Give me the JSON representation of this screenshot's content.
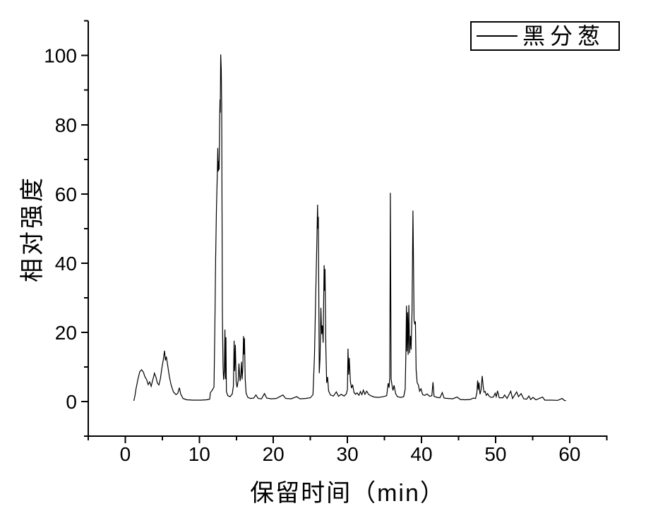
{
  "figure": {
    "x_axis_title": "保留时间（min）",
    "y_axis_title": "相对强度",
    "legend_label": "黑分葱",
    "line_color": "#000000",
    "background": "#ffffff"
  },
  "chart_data": {
    "type": "line",
    "title": "",
    "xlabel": "保留时间（min）",
    "ylabel": "相对强度",
    "legend_entries": [
      "黑分葱"
    ],
    "legend_position": "top-right",
    "grid": false,
    "xlim": [
      -5,
      65
    ],
    "ylim": [
      -10,
      110
    ],
    "xticks_major": [
      0,
      10,
      20,
      30,
      40,
      50,
      60
    ],
    "xticks_minor": [
      -5,
      5,
      15,
      25,
      35,
      45,
      55,
      65
    ],
    "yticks_major": [
      0,
      20,
      40,
      60,
      80,
      100
    ],
    "yticks_minor": [
      -10,
      10,
      30,
      50,
      70,
      90,
      110
    ],
    "series": [
      {
        "name": "黑分葱",
        "color": "#000000",
        "points": [
          [
            1.15,
            0.2
          ],
          [
            1.3,
            1.5
          ],
          [
            1.45,
            3.6
          ],
          [
            1.7,
            6.3
          ],
          [
            1.95,
            8.6
          ],
          [
            2.2,
            9.2
          ],
          [
            2.45,
            8.5
          ],
          [
            2.65,
            7.2
          ],
          [
            2.9,
            6.3
          ],
          [
            3.1,
            4.9
          ],
          [
            3.3,
            5.7
          ],
          [
            3.5,
            4.4
          ],
          [
            3.7,
            6.1
          ],
          [
            3.95,
            8.2
          ],
          [
            4.15,
            7.0
          ],
          [
            4.35,
            5.3
          ],
          [
            4.55,
            4.8
          ],
          [
            4.75,
            6.6
          ],
          [
            4.95,
            9.7
          ],
          [
            5.15,
            12.2
          ],
          [
            5.3,
            14.7
          ],
          [
            5.42,
            11.9
          ],
          [
            5.55,
            13.0
          ],
          [
            5.75,
            10.2
          ],
          [
            5.95,
            7.3
          ],
          [
            6.2,
            4.8
          ],
          [
            6.5,
            2.8
          ],
          [
            6.85,
            2.0
          ],
          [
            7.1,
            2.4
          ],
          [
            7.3,
            4.0
          ],
          [
            7.5,
            2.1
          ],
          [
            7.8,
            0.9
          ],
          [
            8.3,
            0.5
          ],
          [
            9.2,
            0.4
          ],
          [
            10.2,
            0.4
          ],
          [
            11.0,
            0.5
          ],
          [
            11.4,
            0.7
          ],
          [
            11.5,
            2.6
          ],
          [
            11.75,
            3.3
          ],
          [
            11.98,
            4.2
          ],
          [
            12.1,
            21
          ],
          [
            12.2,
            41
          ],
          [
            12.32,
            56
          ],
          [
            12.42,
            65
          ],
          [
            12.5,
            73.3
          ],
          [
            12.56,
            66.5
          ],
          [
            12.62,
            69.5
          ],
          [
            12.68,
            67
          ],
          [
            12.74,
            80
          ],
          [
            12.79,
            87.3
          ],
          [
            12.83,
            83.5
          ],
          [
            12.89,
            100.3
          ],
          [
            12.96,
            96
          ],
          [
            13.02,
            85
          ],
          [
            13.07,
            55
          ],
          [
            13.12,
            25
          ],
          [
            13.2,
            10.5
          ],
          [
            13.28,
            6.3
          ],
          [
            13.38,
            9
          ],
          [
            13.46,
            20.8
          ],
          [
            13.53,
            6.5
          ],
          [
            13.59,
            18.6
          ],
          [
            13.66,
            2.9
          ],
          [
            13.85,
            1.7
          ],
          [
            14.15,
            1.4
          ],
          [
            14.45,
            2.2
          ],
          [
            14.6,
            4.5
          ],
          [
            14.7,
            17.6
          ],
          [
            14.78,
            8.8
          ],
          [
            14.87,
            16.4
          ],
          [
            14.98,
            5.8
          ],
          [
            15.1,
            4.1
          ],
          [
            15.25,
            6.2
          ],
          [
            15.35,
            11.0
          ],
          [
            15.5,
            5.9
          ],
          [
            15.62,
            8.2
          ],
          [
            15.7,
            11.5
          ],
          [
            15.78,
            6.4
          ],
          [
            15.88,
            10
          ],
          [
            15.97,
            18.9
          ],
          [
            16.04,
            13.6
          ],
          [
            16.1,
            18.3
          ],
          [
            16.2,
            6.5
          ],
          [
            16.32,
            2.4
          ],
          [
            16.55,
            1.2
          ],
          [
            16.9,
            0.9
          ],
          [
            17.35,
            1.0
          ],
          [
            17.65,
            1.9
          ],
          [
            17.95,
            0.9
          ],
          [
            18.4,
            0.8
          ],
          [
            18.8,
            2.3
          ],
          [
            19.1,
            1.0
          ],
          [
            19.7,
            0.8
          ],
          [
            20.4,
            0.9
          ],
          [
            21.3,
            1.9
          ],
          [
            21.65,
            0.9
          ],
          [
            22.4,
            0.8
          ],
          [
            23.15,
            1.4
          ],
          [
            23.6,
            0.8
          ],
          [
            24.35,
            0.9
          ],
          [
            25.0,
            1.1
          ],
          [
            25.35,
            2.0
          ],
          [
            25.55,
            13
          ],
          [
            25.72,
            31
          ],
          [
            25.88,
            47
          ],
          [
            25.97,
            56.9
          ],
          [
            26.02,
            50
          ],
          [
            26.07,
            53.4
          ],
          [
            26.13,
            33
          ],
          [
            26.2,
            8.2
          ],
          [
            26.3,
            12.5
          ],
          [
            26.42,
            27.1
          ],
          [
            26.52,
            19.5
          ],
          [
            26.62,
            22
          ],
          [
            26.72,
            17
          ],
          [
            26.85,
            39.4
          ],
          [
            26.92,
            32
          ],
          [
            26.98,
            38.3
          ],
          [
            27.08,
            16
          ],
          [
            27.2,
            5.4
          ],
          [
            27.32,
            7.1
          ],
          [
            27.45,
            3.1
          ],
          [
            27.7,
            1.9
          ],
          [
            28.1,
            1.6
          ],
          [
            28.5,
            2.8
          ],
          [
            28.8,
            1.5
          ],
          [
            29.15,
            2.1
          ],
          [
            29.55,
            1.6
          ],
          [
            29.85,
            2.2
          ],
          [
            30.0,
            3.5
          ],
          [
            30.08,
            15.3
          ],
          [
            30.16,
            7.8
          ],
          [
            30.25,
            12.6
          ],
          [
            30.4,
            5.8
          ],
          [
            30.55,
            3.9
          ],
          [
            30.7,
            4.9
          ],
          [
            30.9,
            2.6
          ],
          [
            31.1,
            2.1
          ],
          [
            31.3,
            2.5
          ],
          [
            31.55,
            1.8
          ],
          [
            31.75,
            2.9
          ],
          [
            31.95,
            2.0
          ],
          [
            32.15,
            3.3
          ],
          [
            32.35,
            2.1
          ],
          [
            32.6,
            3.0
          ],
          [
            32.85,
            2.1
          ],
          [
            33.15,
            1.7
          ],
          [
            33.6,
            1.3
          ],
          [
            34.2,
            1.2
          ],
          [
            34.85,
            1.4
          ],
          [
            35.3,
            1.7
          ],
          [
            35.5,
            5.3
          ],
          [
            35.62,
            4.0
          ],
          [
            35.72,
            7
          ],
          [
            35.8,
            60.3
          ],
          [
            35.9,
            6.5
          ],
          [
            36.02,
            4.8
          ],
          [
            36.15,
            3.2
          ],
          [
            36.3,
            4.7
          ],
          [
            36.5,
            2.3
          ],
          [
            36.75,
            1.4
          ],
          [
            37.2,
            1.2
          ],
          [
            37.6,
            1.4
          ],
          [
            37.8,
            3.5
          ],
          [
            37.9,
            15
          ],
          [
            37.97,
            27.7
          ],
          [
            38.04,
            14.5
          ],
          [
            38.12,
            25.8
          ],
          [
            38.2,
            13.5
          ],
          [
            38.29,
            27.9
          ],
          [
            38.4,
            14
          ],
          [
            38.5,
            19
          ],
          [
            38.6,
            15
          ],
          [
            38.72,
            26
          ],
          [
            38.85,
            55.2
          ],
          [
            38.93,
            38
          ],
          [
            39.0,
            23.4
          ],
          [
            39.1,
            22.3
          ],
          [
            39.18,
            23.2
          ],
          [
            39.28,
            9.2
          ],
          [
            39.42,
            5.4
          ],
          [
            39.58,
            4.8
          ],
          [
            39.74,
            3.0
          ],
          [
            39.93,
            3.7
          ],
          [
            40.15,
            2.0
          ],
          [
            40.45,
            1.8
          ],
          [
            40.75,
            2.2
          ],
          [
            41.1,
            1.5
          ],
          [
            41.4,
            1.7
          ],
          [
            41.55,
            5.6
          ],
          [
            41.7,
            1.5
          ],
          [
            42.1,
            1.2
          ],
          [
            42.5,
            1.1
          ],
          [
            42.8,
            2.6
          ],
          [
            43.05,
            1.0
          ],
          [
            43.6,
            0.9
          ],
          [
            44.2,
            0.8
          ],
          [
            44.8,
            1.3
          ],
          [
            45.25,
            0.6
          ],
          [
            45.9,
            0.5
          ],
          [
            46.55,
            0.6
          ],
          [
            47.0,
            1.0
          ],
          [
            47.3,
            0.9
          ],
          [
            47.48,
            2.6
          ],
          [
            47.58,
            6.1
          ],
          [
            47.67,
            3.4
          ],
          [
            47.76,
            5.5
          ],
          [
            47.9,
            2.1
          ],
          [
            48.05,
            3.4
          ],
          [
            48.2,
            7.4
          ],
          [
            48.33,
            4.4
          ],
          [
            48.45,
            2.7
          ],
          [
            48.6,
            2.9
          ],
          [
            48.75,
            1.8
          ],
          [
            48.92,
            2.3
          ],
          [
            49.15,
            1.5
          ],
          [
            49.4,
            1.2
          ],
          [
            49.7,
            1.3
          ],
          [
            49.95,
            2.4
          ],
          [
            50.1,
            1.4
          ],
          [
            50.27,
            3.1
          ],
          [
            50.5,
            1.1
          ],
          [
            51.0,
            1.1
          ],
          [
            51.22,
            1.9
          ],
          [
            51.55,
            0.9
          ],
          [
            52.05,
            3.0
          ],
          [
            52.3,
            0.9
          ],
          [
            52.85,
            2.8
          ],
          [
            53.1,
            1.4
          ],
          [
            53.45,
            2.3
          ],
          [
            53.8,
            0.8
          ],
          [
            54.2,
            0.7
          ],
          [
            54.5,
            1.6
          ],
          [
            54.75,
            0.6
          ],
          [
            55.05,
            1.2
          ],
          [
            55.45,
            0.5
          ],
          [
            56.35,
            1.3
          ],
          [
            56.65,
            0.4
          ],
          [
            57.6,
            0.4
          ],
          [
            58.4,
            0.35
          ],
          [
            59.0,
            0.9
          ],
          [
            59.3,
            0.3
          ],
          [
            59.5,
            0.25
          ]
        ]
      }
    ]
  }
}
